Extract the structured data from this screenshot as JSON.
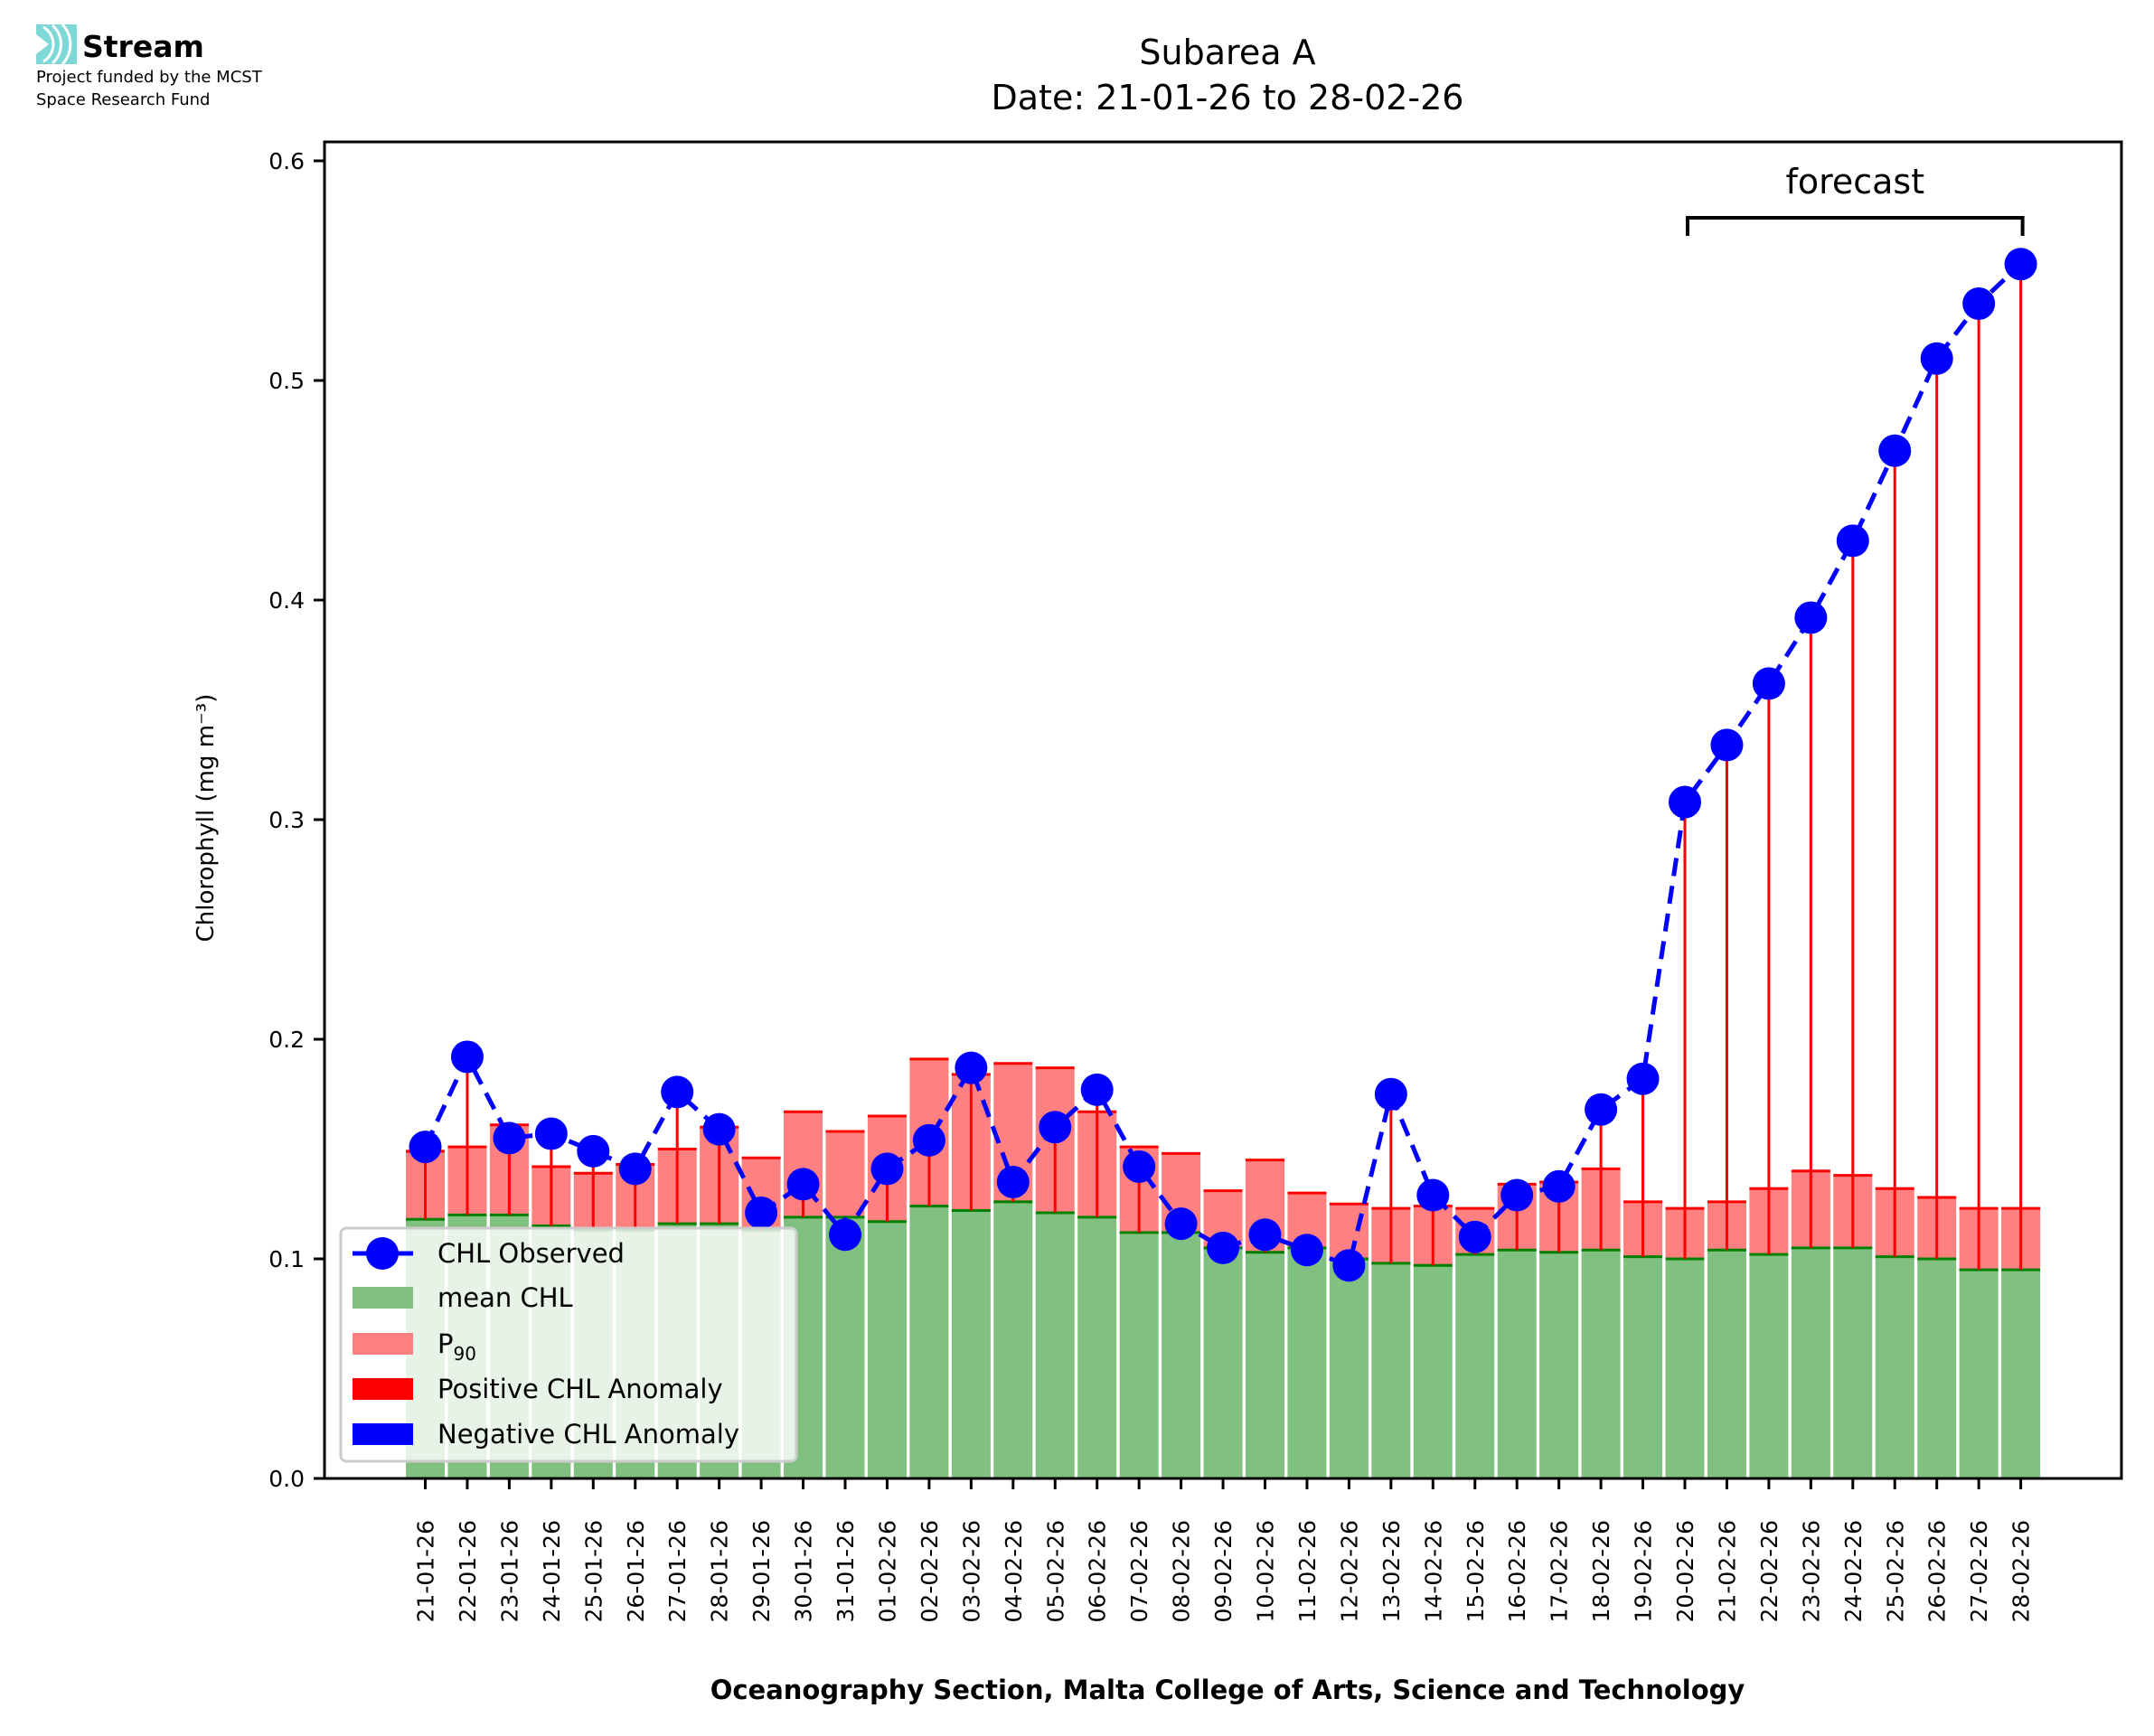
{
  "logo": {
    "name": "Stream",
    "line1": "Project funded by the MCST",
    "line2": "Space Research Fund",
    "accent": "#7fd8d8"
  },
  "chart_data": {
    "type": "bar",
    "title_line1": "Subarea A",
    "title_line2": "Date: 21-01-26 to 28-02-26",
    "xlabel": "Oceanography Section, Malta College of Arts, Science and Technology",
    "ylabel": "Chlorophyll (mg m⁻³)",
    "ylim": [
      0.0,
      0.61
    ],
    "yticks": [
      0.0,
      0.1,
      0.2,
      0.3,
      0.4,
      0.5,
      0.6
    ],
    "ytick_labels": [
      "0.0",
      "0.1",
      "0.2",
      "0.3",
      "0.4",
      "0.5",
      "0.6"
    ],
    "grid": false,
    "legend_position": "bottom-left",
    "annotation": {
      "text": "forecast",
      "from": "20-02-26",
      "to": "28-02-26"
    },
    "colors": {
      "observed": "#0000ff",
      "mean": "#80c080",
      "mean_edge": "#008000",
      "p90": "#ff8080",
      "p90_edge": "#ff0000",
      "positive_anomaly": "#ff0000",
      "negative_anomaly": "#0000ff"
    },
    "legend": [
      {
        "label": "CHL Observed",
        "kind": "line-marker",
        "color": "#0000ff"
      },
      {
        "label": "mean CHL",
        "kind": "patch",
        "color": "#80c080"
      },
      {
        "label": "P",
        "sub": "90",
        "kind": "patch",
        "color": "#ff8080"
      },
      {
        "label": "Positive CHL Anomaly",
        "kind": "patch",
        "color": "#ff0000"
      },
      {
        "label": "Negative CHL Anomaly",
        "kind": "patch",
        "color": "#0000ff"
      }
    ],
    "categories": [
      "21-01-26",
      "22-01-26",
      "23-01-26",
      "24-01-26",
      "25-01-26",
      "26-01-26",
      "27-01-26",
      "28-01-26",
      "29-01-26",
      "30-01-26",
      "31-01-26",
      "01-02-26",
      "02-02-26",
      "03-02-26",
      "04-02-26",
      "05-02-26",
      "06-02-26",
      "07-02-26",
      "08-02-26",
      "09-02-26",
      "10-02-26",
      "11-02-26",
      "12-02-26",
      "13-02-26",
      "14-02-26",
      "15-02-26",
      "16-02-26",
      "17-02-26",
      "18-02-26",
      "19-02-26",
      "20-02-26",
      "21-02-26",
      "22-02-26",
      "23-02-26",
      "24-02-26",
      "25-02-26",
      "26-02-26",
      "27-02-26",
      "28-02-26"
    ],
    "series": [
      {
        "name": "CHL Observed",
        "values": [
          0.151,
          0.192,
          0.155,
          0.157,
          0.149,
          0.141,
          0.176,
          0.159,
          0.121,
          0.134,
          0.111,
          0.141,
          0.154,
          0.187,
          0.135,
          0.16,
          0.177,
          0.142,
          0.116,
          0.105,
          0.111,
          0.104,
          0.097,
          0.175,
          0.129,
          0.11,
          0.129,
          0.133,
          0.168,
          0.182,
          0.308,
          0.334,
          0.362,
          0.392,
          0.427,
          0.468,
          0.51,
          0.535,
          0.553
        ]
      },
      {
        "name": "mean CHL",
        "values": [
          0.118,
          0.12,
          0.12,
          0.115,
          0.113,
          0.113,
          0.116,
          0.116,
          0.113,
          0.119,
          0.119,
          0.117,
          0.124,
          0.122,
          0.126,
          0.121,
          0.119,
          0.112,
          0.112,
          0.105,
          0.103,
          0.105,
          0.1,
          0.098,
          0.097,
          0.102,
          0.104,
          0.103,
          0.104,
          0.101,
          0.1,
          0.104,
          0.102,
          0.105,
          0.105,
          0.101,
          0.1,
          0.095,
          0.095
        ]
      },
      {
        "name": "P90",
        "values": [
          0.149,
          0.151,
          0.161,
          0.142,
          0.139,
          0.143,
          0.15,
          0.16,
          0.146,
          0.167,
          0.158,
          0.165,
          0.191,
          0.184,
          0.189,
          0.187,
          0.167,
          0.151,
          0.148,
          0.131,
          0.145,
          0.13,
          0.125,
          0.123,
          0.124,
          0.123,
          0.134,
          0.135,
          0.141,
          0.126,
          0.123,
          0.126,
          0.132,
          0.14,
          0.138,
          0.132,
          0.128,
          0.123,
          0.123
        ]
      }
    ]
  }
}
